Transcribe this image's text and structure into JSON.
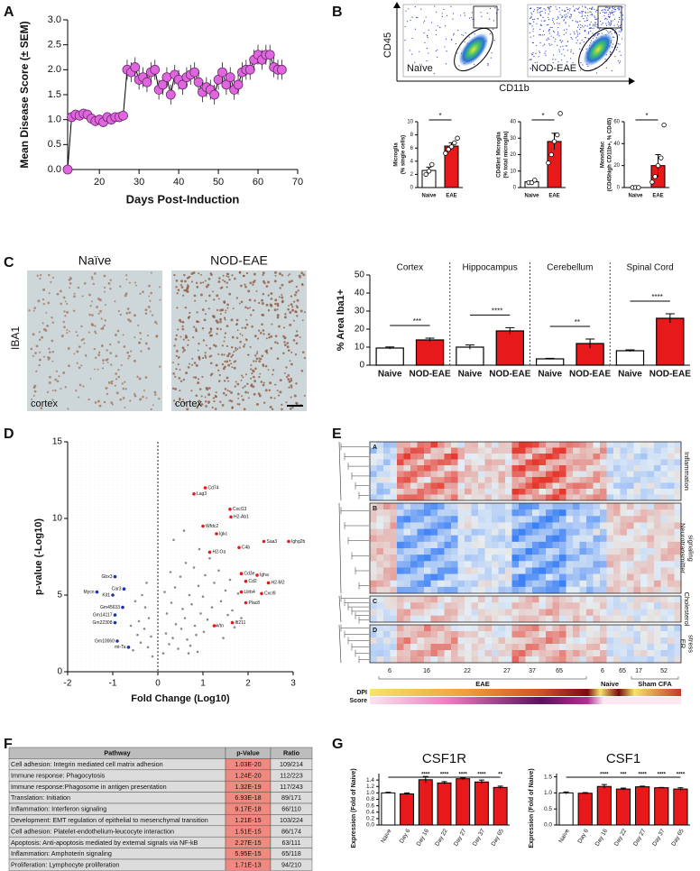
{
  "panels": [
    "A",
    "B",
    "C",
    "D",
    "E",
    "F",
    "G"
  ],
  "flow": {
    "y_axis": "CD45",
    "x_axis": "CD11b",
    "plots": [
      "Naïve",
      "NOD-EAE"
    ]
  },
  "histology": {
    "stain": "IBA1",
    "conditions": [
      "Naïve",
      "NOD-EAE"
    ],
    "region": "cortex"
  },
  "heatmap": {
    "clusters": [
      "A",
      "B",
      "C",
      "D"
    ],
    "cluster_names": [
      [
        "Inflammation"
      ],
      [
        "Neurotransmitter",
        "signaling"
      ],
      [
        "Cholesterol"
      ],
      [
        "ER",
        "stress"
      ]
    ],
    "dpi_labels": [
      "6",
      "16",
      "22",
      "27",
      "37",
      "65",
      "6",
      "65",
      "17",
      "52"
    ],
    "groups": [
      "EAE",
      "Naive",
      "Sham CFA"
    ],
    "rows": [
      "DPI",
      "Score"
    ]
  },
  "table": {
    "columns": [
      "Pathway",
      "p-Value",
      "Ratio"
    ],
    "rows": [
      [
        "Cell adhesion: Integrin mediated cell matrix adhesion",
        "1.03E-20",
        "109/214"
      ],
      [
        "Immune response: Phagocytosis",
        "1.24E-20",
        "112/223"
      ],
      [
        "Immune response:Phagosome in antigen presentation",
        "1.32E-19",
        "117/243"
      ],
      [
        "Translation: Initiation",
        "6.93E-18",
        "89/171"
      ],
      [
        "Inflammation: Interferon signaling",
        "9.17E-18",
        "66/110"
      ],
      [
        "Development: EMT regulation of epithelial to mesenchymal transition",
        "1.21E-15",
        "103/224"
      ],
      [
        "Cell adhesion: Platelet-endothelium-leucocyte interaction",
        "1.51E-15",
        "86/174"
      ],
      [
        "Apoptosis: Anti-apoptosis mediated by external signals via NF-kB",
        "2.27E-15",
        "63/111"
      ],
      [
        "Inflammation: Amphoterin signaling",
        "5.95E-15",
        "65/118"
      ],
      [
        "Proliferation: Lymphocyte proliferation",
        "1.71E-13",
        "94/210"
      ]
    ]
  },
  "chart_data": [
    {
      "type": "line",
      "xlabel": "Days Post-Induction",
      "ylabel": "Mean Disease Score (± SEM)",
      "color": "#e066e0",
      "x": [
        12,
        13,
        14,
        15,
        16,
        17,
        18,
        19,
        20,
        21,
        22,
        23,
        24,
        25,
        26,
        27,
        28,
        29,
        30,
        31,
        32,
        33,
        34,
        35,
        36,
        37,
        38,
        39,
        40,
        41,
        42,
        43,
        44,
        45,
        46,
        47,
        48,
        49,
        50,
        51,
        52,
        53,
        54,
        55,
        56,
        57,
        58,
        59,
        60,
        61,
        62,
        63,
        64,
        65,
        66
      ],
      "values": [
        0,
        1.05,
        1.1,
        1.08,
        1.12,
        1.1,
        1.02,
        0.97,
        1.0,
        0.95,
        1.05,
        1.0,
        1.05,
        1.05,
        1.08,
        2.0,
        1.95,
        2.05,
        1.8,
        1.85,
        1.75,
        1.95,
        2.0,
        1.6,
        1.7,
        1.85,
        1.5,
        1.9,
        1.8,
        1.7,
        1.85,
        1.9,
        1.95,
        1.75,
        1.55,
        1.65,
        1.6,
        1.5,
        1.8,
        1.95,
        1.7,
        1.85,
        1.6,
        1.7,
        1.95,
        2.0,
        2.0,
        2.2,
        2.3,
        2.2,
        2.3,
        2.3,
        2.05,
        2.0,
        2.0
      ],
      "errors": [
        0,
        0.1,
        0.1,
        0.1,
        0.1,
        0.1,
        0.1,
        0.1,
        0.1,
        0.1,
        0.1,
        0.1,
        0.1,
        0.1,
        0.1,
        0.2,
        0.2,
        0.2,
        0.2,
        0.2,
        0.2,
        0.2,
        0.2,
        0.2,
        0.2,
        0.2,
        0.2,
        0.2,
        0.2,
        0.2,
        0.2,
        0.2,
        0.2,
        0.2,
        0.2,
        0.2,
        0.2,
        0.2,
        0.2,
        0.2,
        0.2,
        0.2,
        0.2,
        0.2,
        0.2,
        0.2,
        0.2,
        0.2,
        0.2,
        0.2,
        0.2,
        0.2,
        0.2,
        0.2,
        0.2
      ],
      "xlim": [
        12,
        70
      ],
      "xticks": [
        20,
        30,
        40,
        50,
        60,
        70
      ],
      "ylim": [
        0,
        3
      ],
      "yticks": [
        {
          "value": 0,
          "label": "0.0"
        },
        0.5,
        {
          "value": 1,
          "label": "1.0"
        },
        1.5,
        {
          "value": 2,
          "label": "2.0"
        },
        2.5,
        {
          "value": 3,
          "label": "3.0"
        }
      ]
    },
    {
      "type": "bar",
      "ylabel": [
        "Microglia",
        "(% single cells)"
      ],
      "categories": [
        "Naive",
        "EAE"
      ],
      "values": [
        2.6,
        6.3
      ],
      "errors": [
        0.5,
        0.5
      ],
      "colors": [
        "#ffffff",
        "#e8191a"
      ],
      "points": [
        [
          2.0,
          2.5,
          3.5
        ],
        [
          5.2,
          5.8,
          6.2,
          6.8,
          7.5
        ]
      ],
      "significance": "*",
      "ylim": [
        0,
        10
      ],
      "yticks": [
        0,
        2,
        4,
        6,
        8,
        10
      ]
    },
    {
      "type": "bar",
      "ylabel": [
        "CD45int Microglia",
        "(% total microglia)"
      ],
      "categories": [
        "Naive",
        "EAE"
      ],
      "values": [
        3.5,
        28
      ],
      "errors": [
        0.5,
        5
      ],
      "colors": [
        "#ffffff",
        "#e8191a"
      ],
      "points": [
        [
          3,
          3,
          4.5
        ],
        [
          15,
          20,
          28,
          32,
          45
        ]
      ],
      "significance": "*",
      "ylim": [
        0,
        40
      ],
      "yticks": [
        0,
        10,
        20,
        30,
        40
      ]
    },
    {
      "type": "bar",
      "ylabel": [
        "Mono/Mac",
        "(CD45high CD11b+, % CD45)"
      ],
      "categories": [
        "Naive",
        "EAE"
      ],
      "values": [
        0,
        20
      ],
      "errors": [
        0,
        10
      ],
      "colors": [
        "#ffffff",
        "#e8191a"
      ],
      "points": [
        [
          0,
          0,
          0
        ],
        [
          5,
          10,
          20,
          27,
          57
        ]
      ],
      "significance": "*",
      "ylim": [
        0,
        60
      ],
      "yticks": [
        0,
        20,
        40,
        60
      ]
    },
    {
      "type": "grouped_bar",
      "ylabel": "% Area Iba1+",
      "groups": [
        "Cortex",
        "Hippocampus",
        "Cerebellum",
        "Spinal Cord"
      ],
      "series": [
        {
          "name": "Naive",
          "color": "#ffffff",
          "values": [
            9.5,
            10,
            3.5,
            8
          ],
          "errors": [
            0.6,
            1.2,
            0.3,
            0.5
          ]
        },
        {
          "name": "NOD-EAE",
          "color": "#e8191a",
          "values": [
            14,
            19,
            12,
            26
          ],
          "errors": [
            1,
            1.8,
            2.5,
            2.5
          ]
        }
      ],
      "significance": [
        "***",
        "****",
        "**",
        "****"
      ],
      "ylim": [
        0,
        50
      ],
      "yticks": [
        0,
        10,
        20,
        30,
        40,
        50
      ]
    },
    {
      "type": "scatter",
      "xlabel": "Fold Change (Log10)",
      "ylabel": "p-value (-Log10)",
      "xlim": [
        -2,
        3
      ],
      "xticks": [
        -2,
        -1,
        0,
        1,
        2,
        3
      ],
      "ylim": [
        0,
        15
      ],
      "yticks": [
        0,
        5,
        10,
        15
      ],
      "series": [
        {
          "color": "#8a8a8a",
          "x": [
            0.12,
            0.18,
            0.2,
            0.25,
            0.3,
            0.33,
            0.38,
            0.4,
            0.45,
            0.5,
            0.52,
            0.55,
            0.6,
            0.62,
            0.65,
            0.7,
            0.72,
            0.75,
            0.8,
            0.82,
            0.85,
            0.9,
            0.92,
            0.95,
            1.0,
            1.02,
            1.05,
            1.1,
            1.15,
            1.2,
            1.25,
            1.3,
            1.35,
            1.4,
            1.45,
            1.5,
            1.55,
            1.6,
            1.65,
            1.7,
            1.78,
            1.85,
            0.15,
            0.28,
            0.35,
            0.58,
            0.68,
            0.88,
            -0.12,
            -0.15,
            -0.2,
            -0.22,
            -0.28,
            -0.3,
            -0.35,
            -0.38,
            -0.42,
            -0.45,
            -0.5,
            -0.55,
            -0.6,
            -0.25
          ],
          "y": [
            1.2,
            2.5,
            3.8,
            1.8,
            4.5,
            2.2,
            5.5,
            3.1,
            1.5,
            6.2,
            2.8,
            4.1,
            3.5,
            7.1,
            2.1,
            5.0,
            1.7,
            4.4,
            6.8,
            3.0,
            2.4,
            5.6,
            8.0,
            3.8,
            4.9,
            2.6,
            6.3,
            3.4,
            7.4,
            4.2,
            5.8,
            3.0,
            6.6,
            4.6,
            2.2,
            5.3,
            3.7,
            6.0,
            4.0,
            2.9,
            5.1,
            3.5,
            5.2,
            6.5,
            8.6,
            9.2,
            1.2,
            1.3,
            1.0,
            2.3,
            3.5,
            1.6,
            4.2,
            2.8,
            5.0,
            1.9,
            3.3,
            2.4,
            4.6,
            1.4,
            3.0,
            5.8
          ]
        },
        {
          "color": "#e8191a",
          "labels": [
            "Cd74",
            "Lag3",
            "Cxcl13",
            "H2-Ab1",
            "Wfdc2",
            "Igkc",
            "Saa3",
            "C4b",
            "H2-Oa",
            "Ighg2b",
            "Cd3e",
            "Igha",
            "Cd2",
            "H2-M2",
            "Lilrb4",
            "Cxcl9",
            "Plac8",
            "Ifi211",
            "Vtn"
          ],
          "x": [
            1.05,
            0.8,
            1.6,
            1.62,
            1.0,
            1.3,
            2.35,
            1.8,
            1.15,
            2.9,
            1.85,
            2.2,
            1.95,
            2.45,
            1.85,
            2.3,
            1.95,
            1.65,
            1.25
          ],
          "y": [
            12.0,
            11.6,
            10.6,
            10.1,
            9.5,
            9.0,
            8.5,
            8.1,
            7.8,
            8.5,
            6.4,
            6.3,
            5.9,
            5.8,
            5.2,
            5.1,
            4.5,
            3.2,
            3.0
          ]
        },
        {
          "color": "#2233aa",
          "labels": [
            "Gbx3",
            "Mycn",
            "Car3",
            "Kit1",
            "Gm45633",
            "Gm14117",
            "Gm22308",
            "Gm10060",
            "mt-Ta"
          ],
          "x": [
            -0.95,
            -1.35,
            -0.75,
            -1.0,
            -0.78,
            -0.95,
            -0.95,
            -0.9,
            -0.65
          ],
          "y": [
            6.2,
            5.2,
            5.4,
            5.0,
            4.2,
            3.7,
            3.2,
            2.0,
            1.6
          ]
        }
      ]
    },
    {
      "type": "bar",
      "title": "CSF1R",
      "ylabel": "Expression (Fold of Naive)",
      "categories": [
        "Naive",
        "Day 6",
        "Day 16",
        "Day 22",
        "Day 27",
        "Day 37",
        "Day 65"
      ],
      "values": [
        1.0,
        0.97,
        1.41,
        1.31,
        1.44,
        1.34,
        1.17
      ],
      "errors": [
        0.02,
        0.03,
        0.1,
        0.04,
        0.03,
        0.06,
        0.04
      ],
      "colors": [
        "#ffffff",
        "#e8191a",
        "#e8191a",
        "#e8191a",
        "#e8191a",
        "#e8191a",
        "#e8191a"
      ],
      "significance": [
        null,
        null,
        "****",
        "****",
        "****",
        "****",
        "**"
      ],
      "ylim": [
        0,
        1.6
      ],
      "yticks": [
        {
          "value": 0,
          "label": "0.0"
        },
        0.2,
        0.4,
        0.6,
        0.8,
        {
          "value": 1,
          "label": "1.0"
        },
        1.2,
        1.4
      ]
    },
    {
      "type": "bar",
      "title": "CSF1",
      "ylabel": "Expression (Fold of Naive)",
      "categories": [
        "Naive",
        "Day 6",
        "Day 16",
        "Day 22",
        "Day 27",
        "Day 37",
        "Day 65"
      ],
      "values": [
        1.0,
        0.99,
        1.2,
        1.12,
        1.19,
        1.16,
        1.12
      ],
      "errors": [
        0.03,
        0.02,
        0.06,
        0.03,
        0.02,
        0.01,
        0.04
      ],
      "colors": [
        "#ffffff",
        "#e8191a",
        "#e8191a",
        "#e8191a",
        "#e8191a",
        "#e8191a",
        "#e8191a"
      ],
      "significance": [
        null,
        null,
        "****",
        "***",
        "****",
        "****",
        "****"
      ],
      "ylim": [
        0,
        1.6
      ],
      "yticks": [
        {
          "value": 0,
          "label": "0.0"
        },
        0.5,
        {
          "value": 1,
          "label": "1.0"
        },
        1.5
      ]
    }
  ]
}
